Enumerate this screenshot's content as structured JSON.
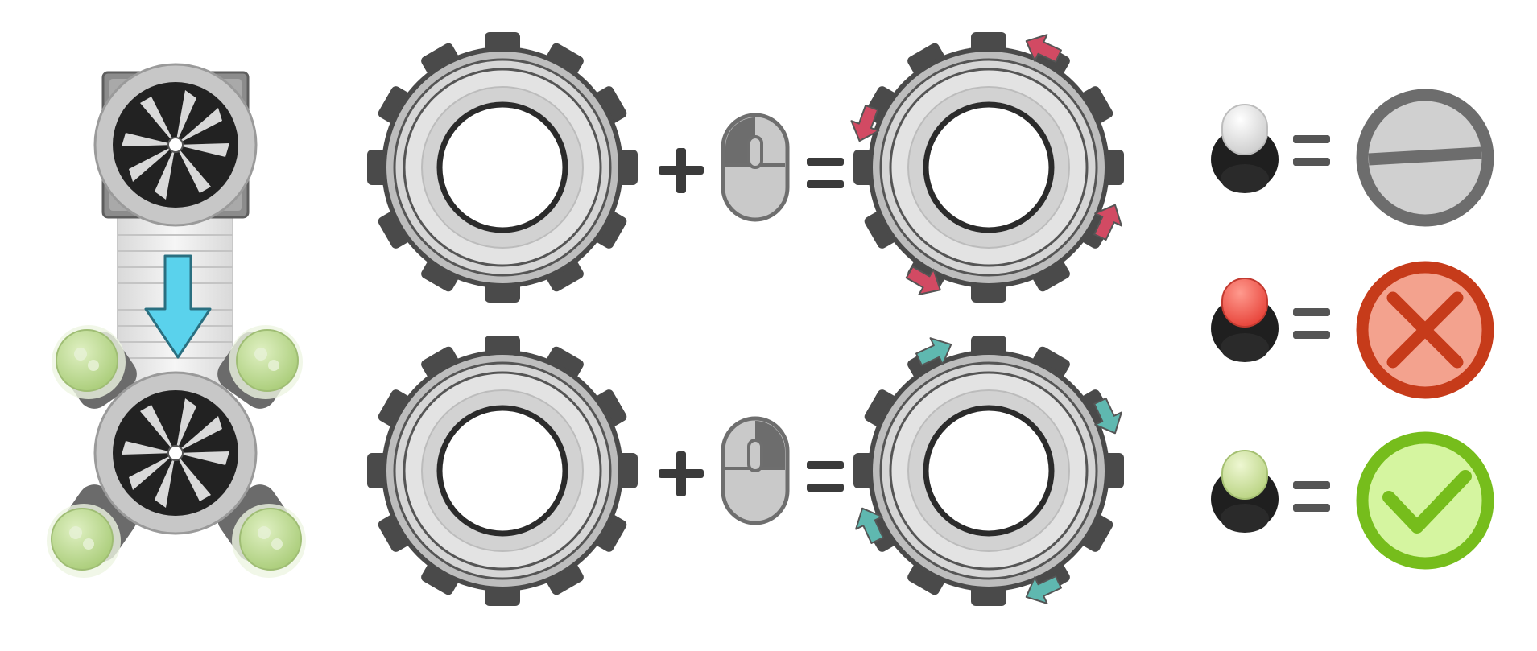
{
  "colors": {
    "background": "#ffffff",
    "operator": "#3b3b3b",
    "gear_dark": "#4a4a4a",
    "gear_light": "#d6d6d6",
    "arrow_counterclockwise": "#d24a63",
    "arrow_clockwise": "#5fb8b0",
    "down_arrow": "#5ad2ec",
    "indicator_neutral": "#6d6d6d",
    "indicator_error": "#c63b1a",
    "indicator_error_fill": "#f3a28e",
    "indicator_ok": "#76bd1c",
    "indicator_ok_fill": "#d5f5a0",
    "led_off": "#e6e6e6",
    "led_red": "#ef5b50",
    "led_green": "#cfe3a0",
    "tube_green": "#bfdc8f"
  },
  "rows": [
    {
      "id": "rotate-counterclockwise",
      "operands": [
        "gear-icon",
        "mouse-left-button-icon"
      ],
      "result": "gear-rotate-counterclockwise-icon",
      "arrow_color_key": "arrow_counterclockwise"
    },
    {
      "id": "rotate-clockwise",
      "operands": [
        "gear-icon",
        "mouse-right-button-icon"
      ],
      "result": "gear-rotate-clockwise-icon",
      "arrow_color_key": "arrow_clockwise"
    }
  ],
  "legend": [
    {
      "led": "led-off-icon",
      "state": "neutral-status-icon"
    },
    {
      "led": "led-red-icon",
      "state": "error-status-icon"
    },
    {
      "led": "led-green-icon",
      "state": "ok-status-icon"
    }
  ],
  "device": {
    "top_module": "rotor-module-icon",
    "arrow": "insert-down-arrow-icon",
    "bottom_module": "rotor-with-tubes-icon",
    "tube_count": 4
  }
}
